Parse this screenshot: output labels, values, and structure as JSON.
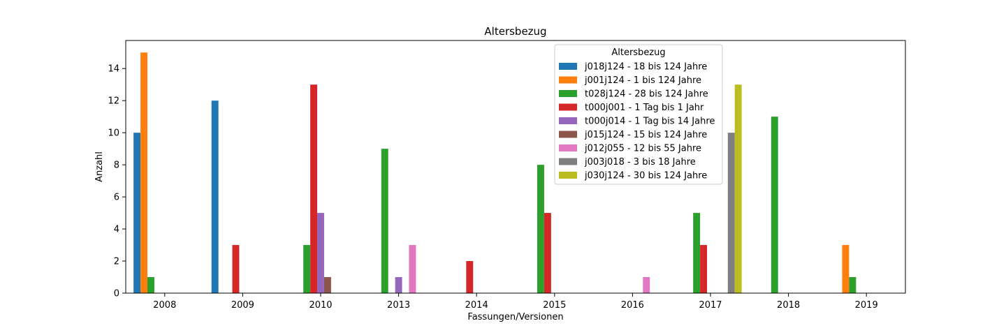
{
  "chart_data": {
    "type": "bar",
    "title": "Altersbezug",
    "xlabel": "Fassungen/Versionen",
    "ylabel": "Anzahl",
    "ylim": [
      0,
      15.75
    ],
    "yticks": [
      0,
      2,
      4,
      6,
      8,
      10,
      12,
      14
    ],
    "categories": [
      "2008",
      "2009",
      "2010",
      "2013",
      "2014",
      "2015",
      "2016",
      "2017",
      "2018",
      "2019"
    ],
    "grid": false,
    "legend": {
      "title": "Altersbezug",
      "placement": "top-right"
    },
    "series": [
      {
        "name": "j018j124 - 18 bis 124 Jahre",
        "color": "#1f77b4",
        "values": [
          10,
          12,
          null,
          null,
          null,
          null,
          null,
          null,
          null,
          null
        ]
      },
      {
        "name": "j001j124 - 1 bis 124 Jahre",
        "color": "#ff7f0e",
        "values": [
          15,
          null,
          null,
          null,
          null,
          null,
          null,
          null,
          null,
          3
        ]
      },
      {
        "name": "t028j124 - 28 bis 124 Jahre",
        "color": "#2ca02c",
        "values": [
          1,
          null,
          3,
          9,
          null,
          8,
          null,
          5,
          11,
          1
        ]
      },
      {
        "name": "t000j001 - 1 Tag bis 1 Jahr",
        "color": "#d62728",
        "values": [
          null,
          3,
          13,
          null,
          2,
          5,
          null,
          3,
          null,
          null
        ]
      },
      {
        "name": "t000j014 - 1 Tag bis 14 Jahre",
        "color": "#9467bd",
        "values": [
          null,
          null,
          5,
          1,
          null,
          null,
          null,
          null,
          null,
          null
        ]
      },
      {
        "name": "j015j124 - 15 bis 124 Jahre",
        "color": "#8c564b",
        "values": [
          null,
          null,
          1,
          null,
          null,
          null,
          null,
          null,
          null,
          null
        ]
      },
      {
        "name": "j012j055 - 12 bis 55 Jahre",
        "color": "#e377c2",
        "values": [
          null,
          null,
          null,
          3,
          null,
          null,
          1,
          null,
          null,
          null
        ]
      },
      {
        "name": "j003j018 - 3 bis 18 Jahre",
        "color": "#7f7f7f",
        "values": [
          null,
          null,
          null,
          null,
          null,
          null,
          null,
          10,
          null,
          null
        ]
      },
      {
        "name": "j030j124 - 30 bis 124 Jahre",
        "color": "#bcbd22",
        "values": [
          null,
          null,
          null,
          null,
          null,
          null,
          null,
          13,
          null,
          null
        ]
      }
    ]
  }
}
